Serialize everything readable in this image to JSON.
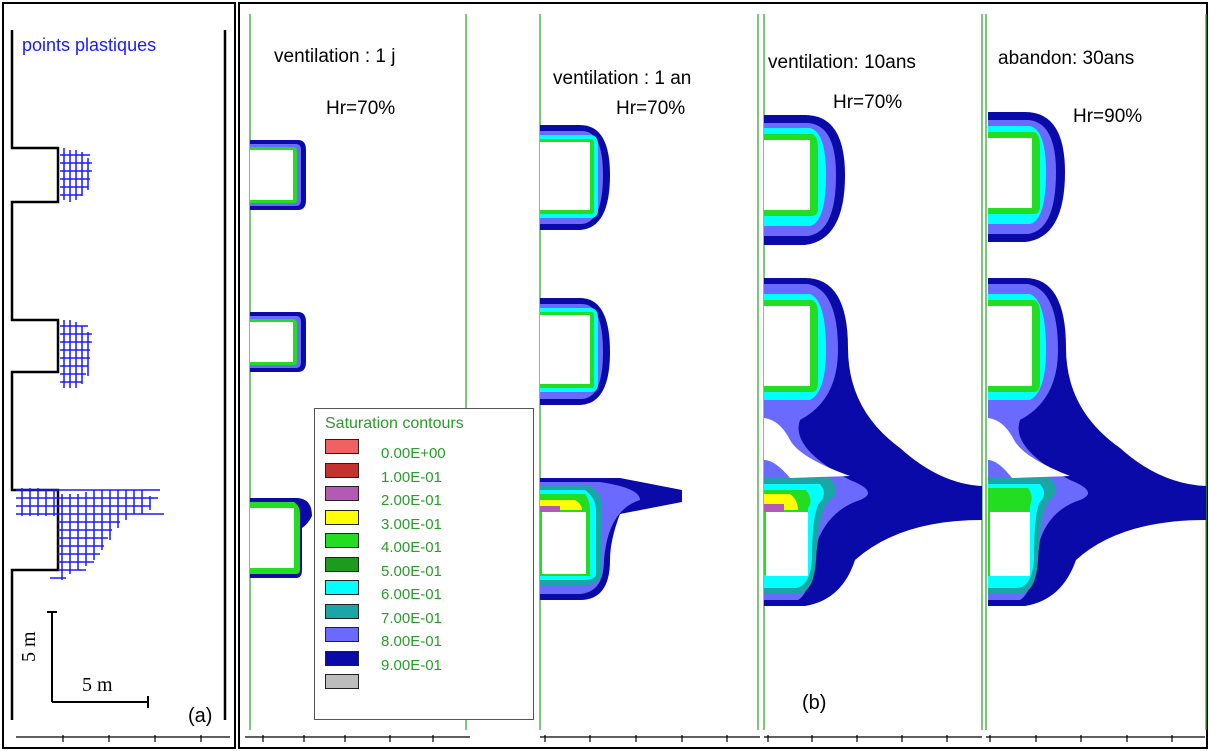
{
  "panel_a": {
    "title": "points plastiques",
    "label": "(a)",
    "scale_vertical": "5 m",
    "scale_horizontal": "5 m"
  },
  "panel_b_label": "(b)",
  "stages": [
    {
      "title": "ventilation : 1 j",
      "hr": "Hr=70%"
    },
    {
      "title": "ventilation : 1 an",
      "hr": "Hr=70%"
    },
    {
      "title": "ventilation: 10ans",
      "hr": "Hr=70%"
    },
    {
      "title": "abandon: 30ans",
      "hr": "Hr=90%"
    }
  ],
  "legend": {
    "title": "Saturation contours",
    "items": [
      {
        "label": "0.00E+00",
        "color": "#f06262"
      },
      {
        "label": "1.00E-01",
        "color": "#c3322e"
      },
      {
        "label": "2.00E-01",
        "color": "#b45ab4"
      },
      {
        "label": "3.00E-01",
        "color": "#ffff00"
      },
      {
        "label": "4.00E-01",
        "color": "#22dd22"
      },
      {
        "label": "5.00E-01",
        "color": "#1e9a1e"
      },
      {
        "label": "6.00E-01",
        "color": "#00ffff"
      },
      {
        "label": "7.00E-01",
        "color": "#1aa6a6"
      },
      {
        "label": "8.00E-01",
        "color": "#6a6aff"
      },
      {
        "label": "9.00E-01",
        "color": "#0a0aa8"
      },
      {
        "label": "",
        "color": "#bdbdbd"
      }
    ],
    "last_label": "9.00E-01"
  },
  "colors": {
    "blue_dark": "#0a0aa8",
    "border_green": "#3aa63a",
    "plastic_blue": "#1a1aff"
  }
}
